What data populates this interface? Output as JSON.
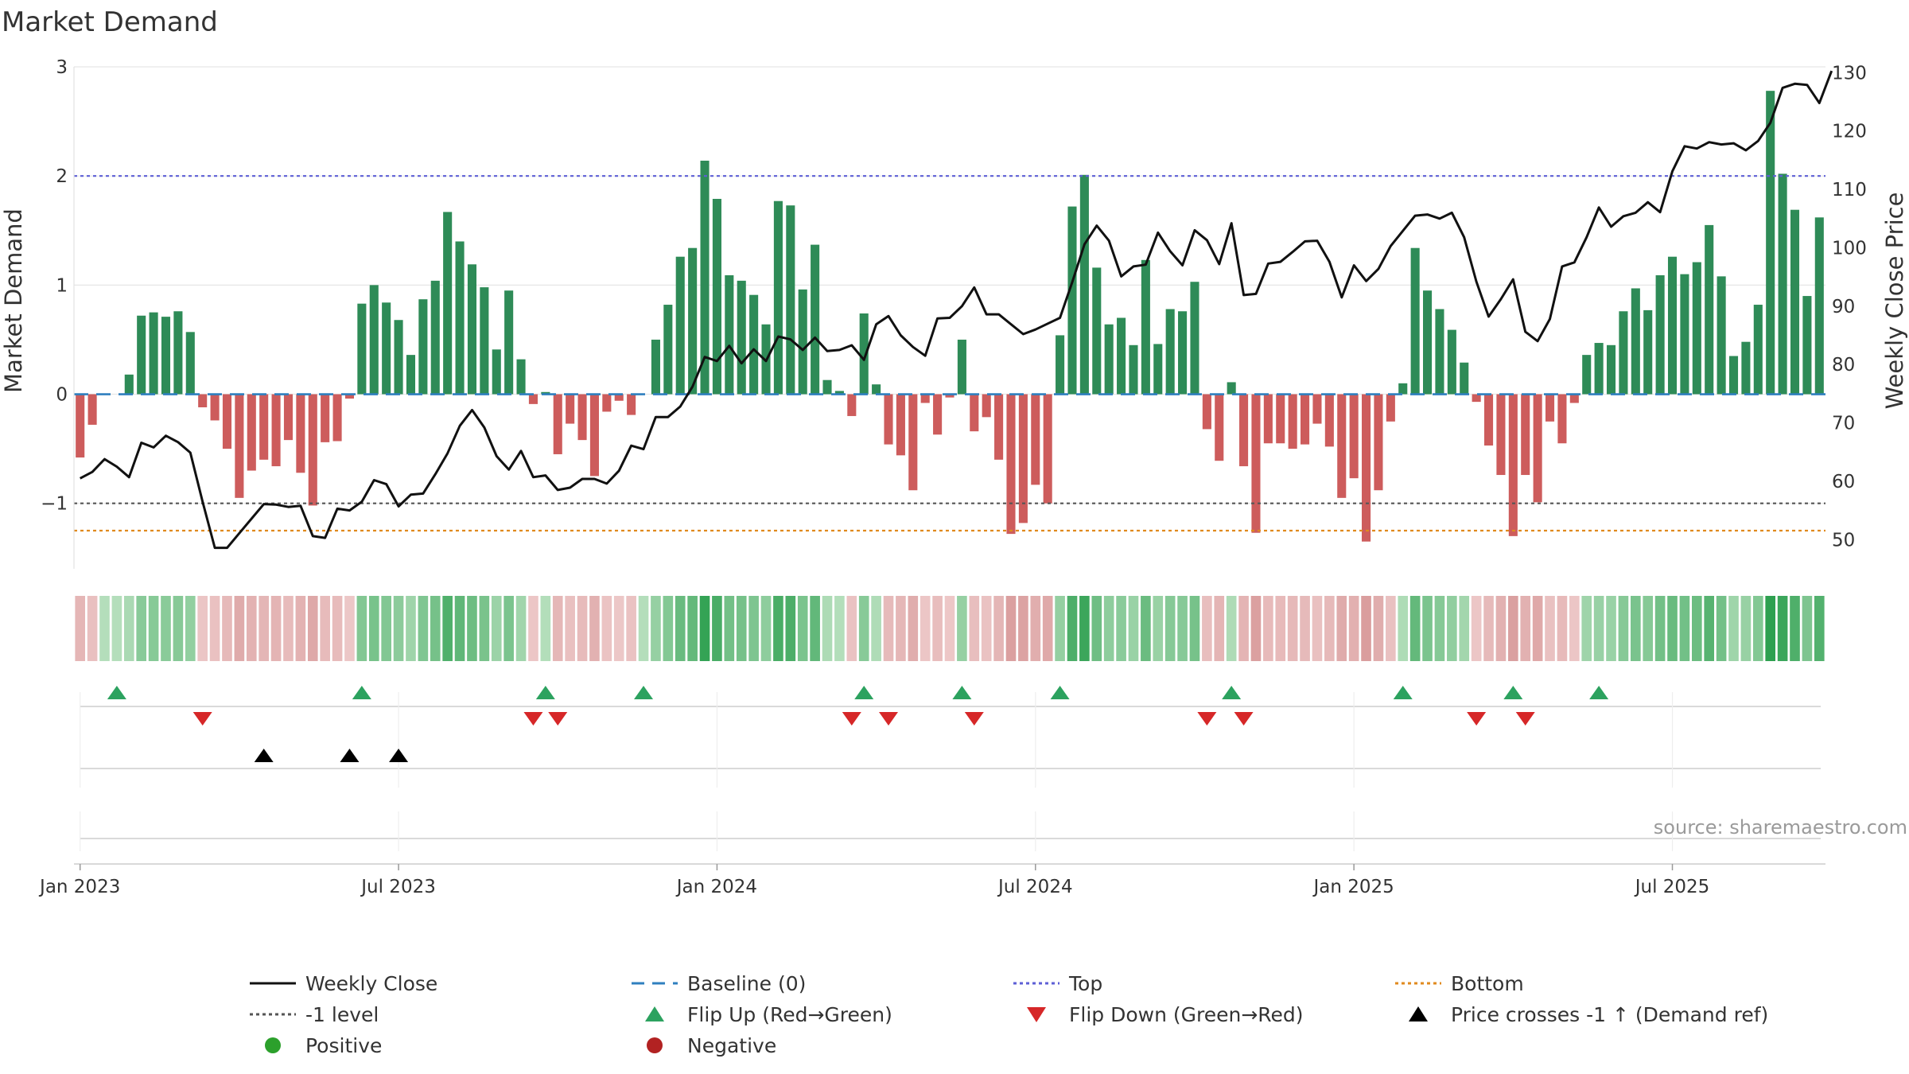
{
  "chart_data": {
    "type": "bar",
    "title": "Market Demand",
    "ylabel": "Market Demand",
    "y2label": "Weekly Close Price",
    "ylim": [
      -1.6,
      3.0
    ],
    "y2lim": [
      45,
      131
    ],
    "yticks": [
      -1,
      0,
      1,
      2,
      3
    ],
    "ytick_labels": [
      "−1",
      "0",
      "1",
      "2",
      "3"
    ],
    "y2ticks": [
      50,
      60,
      70,
      80,
      90,
      100,
      110,
      120,
      130
    ],
    "y2tick_labels": [
      "50",
      "60",
      "70",
      "80",
      "90",
      "100",
      "110",
      "120",
      "130"
    ],
    "x_start": "2023-01-02",
    "x_ticks": [
      {
        "label": "Jan 2023",
        "week": 1
      },
      {
        "label": "Jul 2023",
        "week": 27
      },
      {
        "label": "Jan 2024",
        "week": 53
      },
      {
        "label": "Jul 2024",
        "week": 79
      },
      {
        "label": "Jan 2025",
        "week": 105
      },
      {
        "label": "Jul 2025",
        "week": 131
      }
    ],
    "reference_lines": {
      "top": 2.0,
      "bottom": -1.25,
      "minus_one": -1.0,
      "baseline": 0
    },
    "demand": [
      -0.58,
      -0.28,
      0.0,
      0.0,
      0.18,
      0.72,
      0.75,
      0.71,
      0.76,
      0.57,
      -0.12,
      -0.24,
      -0.5,
      -0.95,
      -0.7,
      -0.6,
      -0.66,
      -0.42,
      -0.72,
      -1.02,
      -0.44,
      -0.43,
      -0.04,
      0.83,
      1.0,
      0.84,
      0.68,
      0.36,
      0.87,
      1.04,
      1.67,
      1.4,
      1.19,
      0.98,
      0.41,
      0.95,
      0.32,
      -0.09,
      0.02,
      -0.55,
      -0.27,
      -0.42,
      -0.75,
      -0.16,
      -0.06,
      -0.19,
      0.0,
      0.5,
      0.82,
      1.26,
      1.34,
      2.14,
      1.79,
      1.09,
      1.04,
      0.91,
      0.64,
      1.77,
      1.73,
      0.96,
      1.37,
      0.13,
      0.03,
      -0.2,
      0.74,
      0.09,
      -0.46,
      -0.56,
      -0.88,
      -0.08,
      -0.37,
      -0.03,
      0.5,
      -0.34,
      -0.21,
      -0.6,
      -1.28,
      -1.18,
      -0.83,
      -1.0,
      0.54,
      1.72,
      2.01,
      1.16,
      0.64,
      0.7,
      0.45,
      1.23,
      0.46,
      0.78,
      0.76,
      1.03,
      -0.32,
      -0.61,
      0.11,
      -0.66,
      -1.27,
      -0.45,
      -0.45,
      -0.5,
      -0.46,
      -0.27,
      -0.48,
      -0.95,
      -0.77,
      -1.35,
      -0.88,
      -0.25,
      0.1,
      1.34,
      0.95,
      0.78,
      0.59,
      0.29,
      -0.07,
      -0.47,
      -0.74,
      -1.3,
      -0.74,
      -0.99,
      -0.25,
      -0.45,
      -0.08,
      0.36,
      0.47,
      0.45,
      0.76,
      0.97,
      0.77,
      1.09,
      1.26,
      1.1,
      1.21,
      1.55,
      1.08,
      0.35,
      0.48,
      0.82,
      2.78,
      2.02,
      1.69,
      0.9,
      1.62
    ],
    "close": [
      60.5,
      61.6,
      63.8,
      62.5,
      60.7,
      66.6,
      65.8,
      67.8,
      66.7,
      64.9,
      56.5,
      48.6,
      48.6,
      51.1,
      53.6,
      56.1,
      56.0,
      55.6,
      55.8,
      50.6,
      50.3,
      55.3,
      55.0,
      56.5,
      60.2,
      59.5,
      55.7,
      57.7,
      57.9,
      61.2,
      64.8,
      69.5,
      72.2,
      69.2,
      64.3,
      62.0,
      65.2,
      60.7,
      61.0,
      58.5,
      58.9,
      60.4,
      60.4,
      59.6,
      61.8,
      66.1,
      65.5,
      71.0,
      71.0,
      72.8,
      76.2,
      81.3,
      80.6,
      83.2,
      80.2,
      82.6,
      80.6,
      84.8,
      84.3,
      82.5,
      84.6,
      82.3,
      82.5,
      83.3,
      80.8,
      86.9,
      88.3,
      85.0,
      83.0,
      81.5,
      87.9,
      88.0,
      90.0,
      93.2,
      88.6,
      88.6,
      86.9,
      85.2,
      86.0,
      87.0,
      88.0,
      94.1,
      100.6,
      103.8,
      101.2,
      95.1,
      96.8,
      97.1,
      102.6,
      99.4,
      97.0,
      103.0,
      101.3,
      97.2,
      104.2,
      91.9,
      92.1,
      97.3,
      97.6,
      99.3,
      101.1,
      101.2,
      97.6,
      91.5,
      97.0,
      94.3,
      96.4,
      100.3,
      102.9,
      105.5,
      105.7,
      105.0,
      106.0,
      101.8,
      94.2,
      88.2,
      91.2,
      94.6,
      85.6,
      84.0,
      87.8,
      96.8,
      97.5,
      101.8,
      106.9,
      103.6,
      105.4,
      106.0,
      107.8,
      106.1,
      113.1,
      117.4,
      117.0,
      118.1,
      117.7,
      117.9,
      116.7,
      118.3,
      121.4,
      127.4,
      128.1,
      127.9,
      124.8,
      130.3
    ],
    "flip_up_weeks": [
      3,
      23,
      38,
      46,
      64,
      72,
      80,
      94,
      108,
      117,
      124
    ],
    "flip_down_weeks": [
      10,
      37,
      39,
      63,
      66,
      73,
      92,
      95,
      114,
      118
    ],
    "price_cross_weeks": [
      15,
      22,
      26
    ],
    "legend": [
      {
        "label": "Weekly Close",
        "kind": "line-solid",
        "color": "#111111"
      },
      {
        "label": "Baseline (0)",
        "kind": "line-dash",
        "color": "#2f7fbf"
      },
      {
        "label": "Top",
        "kind": "line-dot",
        "color": "#5d5fd6"
      },
      {
        "label": "Bottom",
        "kind": "line-dot",
        "color": "#e08a1e"
      },
      {
        "label": "-1 level",
        "kind": "line-dot",
        "color": "#555555"
      },
      {
        "label": "Flip Up (Red→Green)",
        "kind": "tri-up",
        "color": "#2ca25f"
      },
      {
        "label": "Flip Down (Green→Red)",
        "kind": "tri-down",
        "color": "#d62728"
      },
      {
        "label": "Price crosses -1 ↑ (Demand ref)",
        "kind": "tri-up",
        "color": "#000000"
      },
      {
        "label": "Positive",
        "kind": "circle",
        "color": "#2ca02c"
      },
      {
        "label": "Negative",
        "kind": "circle",
        "color": "#b22222"
      }
    ],
    "colors": {
      "positive_bar": "#2e8b57",
      "negative_bar": "#cd5c5c",
      "close_line": "#111111",
      "baseline": "#2f7fbf",
      "top": "#5d5fd6",
      "bottom": "#e08a1e",
      "minus_one": "#555555",
      "grid": "#e6e6e6"
    },
    "source": "source: sharemaestro.com"
  }
}
